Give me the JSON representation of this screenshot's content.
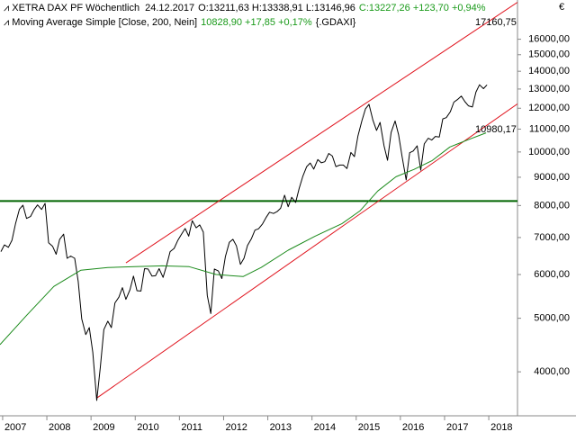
{
  "chart_data": {
    "type": "line",
    "log_y": true,
    "currency": "€",
    "info": {
      "date": "24.12.2017",
      "ohlc": "O:13211,63 H:13338,91 L:13146,96",
      "change": "C:13227,26 +123,70 +0,94%",
      "ma_change": "10828,90 +17,85 +0,17%",
      "symbol": "{.GDAXI}"
    },
    "series": [
      {
        "name": "XETRA DAX PF Wöchentlich",
        "color": "#000000",
        "x": [
          2006.96,
          2007.04,
          2007.13,
          2007.21,
          2007.29,
          2007.38,
          2007.46,
          2007.54,
          2007.63,
          2007.71,
          2007.79,
          2007.88,
          2007.96,
          2008.04,
          2008.13,
          2008.21,
          2008.29,
          2008.38,
          2008.46,
          2008.54,
          2008.63,
          2008.71,
          2008.79,
          2008.88,
          2008.96,
          2009.04,
          2009.13,
          2009.21,
          2009.29,
          2009.38,
          2009.46,
          2009.54,
          2009.63,
          2009.71,
          2009.79,
          2009.88,
          2009.96,
          2010.04,
          2010.13,
          2010.21,
          2010.29,
          2010.38,
          2010.46,
          2010.54,
          2010.63,
          2010.71,
          2010.79,
          2010.88,
          2010.96,
          2011.04,
          2011.13,
          2011.21,
          2011.29,
          2011.38,
          2011.46,
          2011.54,
          2011.63,
          2011.71,
          2011.79,
          2011.88,
          2011.96,
          2012.04,
          2012.13,
          2012.21,
          2012.29,
          2012.38,
          2012.46,
          2012.54,
          2012.63,
          2012.71,
          2012.79,
          2012.88,
          2012.96,
          2013.04,
          2013.13,
          2013.21,
          2013.29,
          2013.38,
          2013.46,
          2013.54,
          2013.63,
          2013.71,
          2013.79,
          2013.88,
          2013.96,
          2014.04,
          2014.13,
          2014.21,
          2014.29,
          2014.38,
          2014.46,
          2014.54,
          2014.63,
          2014.71,
          2014.79,
          2014.88,
          2014.96,
          2015.04,
          2015.13,
          2015.21,
          2015.29,
          2015.38,
          2015.46,
          2015.54,
          2015.63,
          2015.71,
          2015.79,
          2015.88,
          2015.96,
          2016.04,
          2016.13,
          2016.21,
          2016.29,
          2016.38,
          2016.46,
          2016.54,
          2016.63,
          2016.71,
          2016.79,
          2016.88,
          2016.96,
          2017.04,
          2017.13,
          2017.21,
          2017.29,
          2017.38,
          2017.46,
          2017.54,
          2017.63,
          2017.71,
          2017.79,
          2017.88,
          2017.96
        ],
        "values": [
          6600,
          6790,
          6720,
          6920,
          7410,
          7880,
          8010,
          7580,
          7640,
          7860,
          8020,
          7870,
          8070,
          6850,
          6750,
          6530,
          6950,
          7100,
          6420,
          6480,
          6420,
          5830,
          4990,
          4670,
          4810,
          4340,
          3550,
          4080,
          4770,
          4940,
          4810,
          5330,
          5460,
          5680,
          5410,
          5630,
          5960,
          5610,
          5600,
          6150,
          6140,
          5960,
          5970,
          6150,
          5930,
          6230,
          6600,
          6690,
          6910,
          7080,
          7270,
          7040,
          7510,
          7290,
          7380,
          7160,
          5500,
          5100,
          6140,
          6090,
          5900,
          6460,
          6860,
          6950,
          6760,
          6260,
          6420,
          6770,
          6970,
          7220,
          7260,
          7410,
          7610,
          7780,
          7740,
          7800,
          7910,
          8350,
          7960,
          8280,
          8100,
          8590,
          9030,
          9410,
          9550,
          9310,
          9690,
          9560,
          9600,
          9940,
          9830,
          9410,
          9470,
          9470,
          9330,
          9980,
          9810,
          10690,
          11400,
          11970,
          12200,
          11410,
          10940,
          11310,
          10260,
          9660,
          10850,
          11380,
          10740,
          9800,
          8900,
          9970,
          10040,
          10260,
          9270,
          10340,
          10590,
          10510,
          10670,
          10640,
          11480,
          11540,
          11830,
          12310,
          12440,
          12620,
          12330,
          12120,
          12060,
          12830,
          13230,
          13020,
          13227.26
        ]
      },
      {
        "name": "Moving Average Simple [Close, 200, Nein]",
        "color": "#1a8a1a",
        "x": [
          2006.94,
          2007.55,
          2008.16,
          2008.77,
          2009.38,
          2009.99,
          2010.61,
          2011.22,
          2011.83,
          2012.44,
          2012.85,
          2013.46,
          2014.07,
          2014.68,
          2015.09,
          2015.49,
          2015.9,
          2016.31,
          2016.72,
          2017.12,
          2017.53,
          2017.94
        ],
        "values": [
          4480,
          5070,
          5710,
          6110,
          6180,
          6200,
          6220,
          6200,
          6000,
          5950,
          6180,
          6640,
          7040,
          7420,
          7830,
          8500,
          9020,
          9300,
          9650,
          10210,
          10520,
          10828.9
        ]
      }
    ],
    "lines": [
      {
        "color": "#e0141e",
        "x": [
          2009.79,
          2018.65
        ],
        "values": [
          6300,
          18660
        ]
      },
      {
        "color": "#e0141e",
        "x": [
          2009.14,
          2018.65
        ],
        "values": [
          3590,
          12220
        ]
      }
    ],
    "hline": {
      "value": 8150,
      "color": "#006400"
    },
    "annotations": [
      {
        "value": 17160.75,
        "label": "17160,75"
      },
      {
        "value": 10980.17,
        "label": "10980,17"
      }
    ],
    "xlim": [
      2006.94,
      2018.65
    ],
    "xticks": [
      2007,
      2008,
      2009,
      2010,
      2011,
      2012,
      2013,
      2014,
      2015,
      2016,
      2017,
      2018
    ],
    "ylim": [
      3355,
      18700
    ],
    "yticks": [
      {
        "value": 4000,
        "label": "4000,00"
      },
      {
        "value": 5000,
        "label": "5000,00"
      },
      {
        "value": 6000,
        "label": "6000,00"
      },
      {
        "value": 7000,
        "label": "7000,00"
      },
      {
        "value": 8000,
        "label": "8000,00"
      },
      {
        "value": 9000,
        "label": "9000,00"
      },
      {
        "value": 10000,
        "label": "10000,00"
      },
      {
        "value": 11000,
        "label": "11000,00"
      },
      {
        "value": 12000,
        "label": "12000,00"
      },
      {
        "value": 13000,
        "label": "13000,00"
      },
      {
        "value": 14000,
        "label": "14000,00"
      },
      {
        "value": 15000,
        "label": "15000,00"
      },
      {
        "value": 16000,
        "label": "16000,00"
      }
    ]
  }
}
